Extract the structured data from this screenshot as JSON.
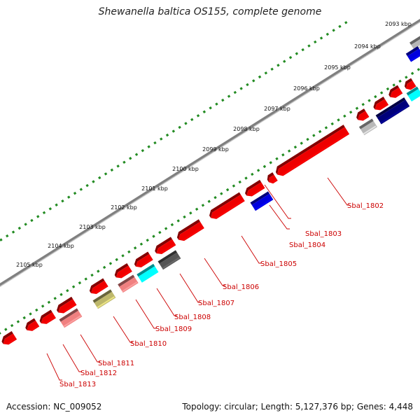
{
  "title": "Shewanella baltica OS155, complete genome",
  "footer": {
    "accession": "Accession: NC_009052",
    "topology": "Topology: circular; Length: 5,127,376 bp; Genes: 4,448"
  },
  "ticks": [
    "2093 kbp",
    "2094 kbp",
    "2095 kbp",
    "2096 kbp",
    "2097 kbp",
    "2098 kbp",
    "2099 kbp",
    "2100 kbp",
    "2101 kbp",
    "2102 kbp",
    "2103 kbp",
    "2104 kbp",
    "2105 kbp"
  ],
  "gene_labels": [
    "Sbal_1802",
    "Sbal_1803",
    "Sbal_1804",
    "Sbal_1805",
    "Sbal_1806",
    "Sbal_1807",
    "Sbal_1808",
    "Sbal_1809",
    "Sbal_1810",
    "Sbal_1811",
    "Sbal_1812",
    "Sbal_1813"
  ],
  "colors": {
    "backbone": "#808080",
    "ticks": "#228b22",
    "gene_red": "#ee0000",
    "gene_pink": "#f08080",
    "gene_cyan": "#00ffff",
    "gene_darkgray": "#555555",
    "gene_olive": "#bdb76b",
    "gene_blue": "#0000dd",
    "gene_navy": "#00007a",
    "gene_silver": "#b8b8b8",
    "label": "#cc0000"
  }
}
